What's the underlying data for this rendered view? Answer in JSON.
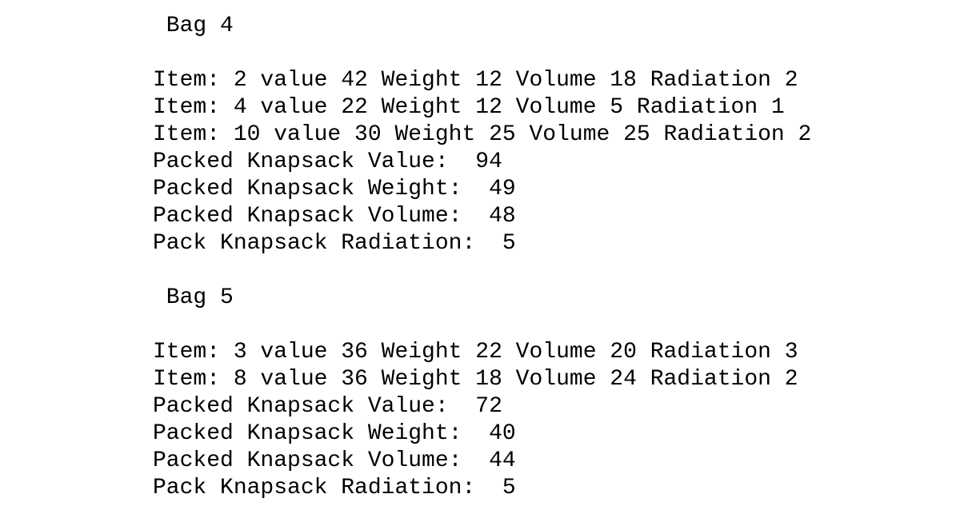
{
  "output": {
    "bag4": {
      "header": " Bag 4",
      "items": [
        "Item: 2 value 42 Weight 12 Volume 18 Radiation 2",
        "Item: 4 value 22 Weight 12 Volume 5 Radiation 1",
        "Item: 10 value 30 Weight 25 Volume 25 Radiation 2"
      ],
      "value_line": "Packed Knapsack Value:  94",
      "weight_line": "Packed Knapsack Weight:  49",
      "volume_line": "Packed Knapsack Volume:  48",
      "radiation_line": "Pack Knapsack Radiation:  5"
    },
    "bag5": {
      "header": " Bag 5",
      "items": [
        "Item: 3 value 36 Weight 22 Volume 20 Radiation 3",
        "Item: 8 value 36 Weight 18 Volume 24 Radiation 2"
      ],
      "value_line": "Packed Knapsack Value:  72",
      "weight_line": "Packed Knapsack Weight:  40",
      "volume_line": "Packed Knapsack Volume:  44",
      "radiation_line": "Pack Knapsack Radiation:  5"
    }
  }
}
